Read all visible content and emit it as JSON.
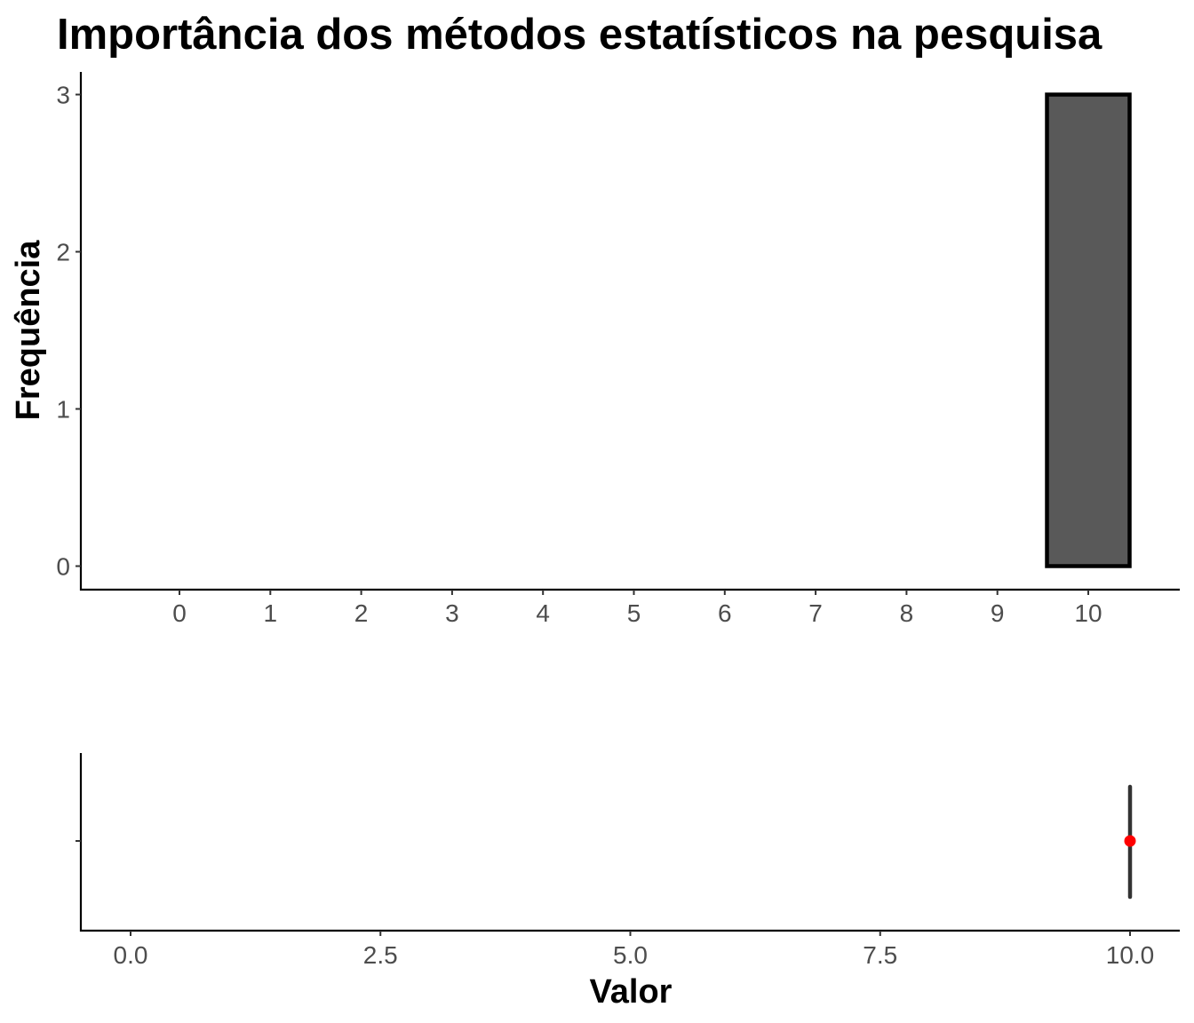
{
  "chart_data": [
    {
      "type": "bar",
      "title": "Importância dos métodos estatísticos na pesquisa",
      "ylabel": "Frequência",
      "xlabel": "",
      "categories": [
        "0",
        "1",
        "2",
        "3",
        "4",
        "5",
        "6",
        "7",
        "8",
        "9",
        "10"
      ],
      "values": [
        0,
        0,
        0,
        0,
        0,
        0,
        0,
        0,
        0,
        0,
        3
      ],
      "ylim": [
        0,
        3
      ],
      "yticks": [
        "0",
        "1",
        "2",
        "3"
      ],
      "grid": false,
      "colors": {
        "bar_fill": "#595959",
        "bar_outline": "#000000"
      }
    },
    {
      "type": "scatter",
      "subtype": "boxplot",
      "xlabel": "Valor",
      "xlim": [
        0,
        10
      ],
      "xticks": [
        "0.0",
        "2.5",
        "5.0",
        "7.5",
        "10.0"
      ],
      "box": {
        "min": 10,
        "q1": 10,
        "median": 10,
        "q3": 10,
        "max": 10
      },
      "points": [
        {
          "x": 10
        }
      ],
      "grid": false,
      "colors": {
        "point": "#ff0000",
        "box": "#333333"
      }
    }
  ]
}
